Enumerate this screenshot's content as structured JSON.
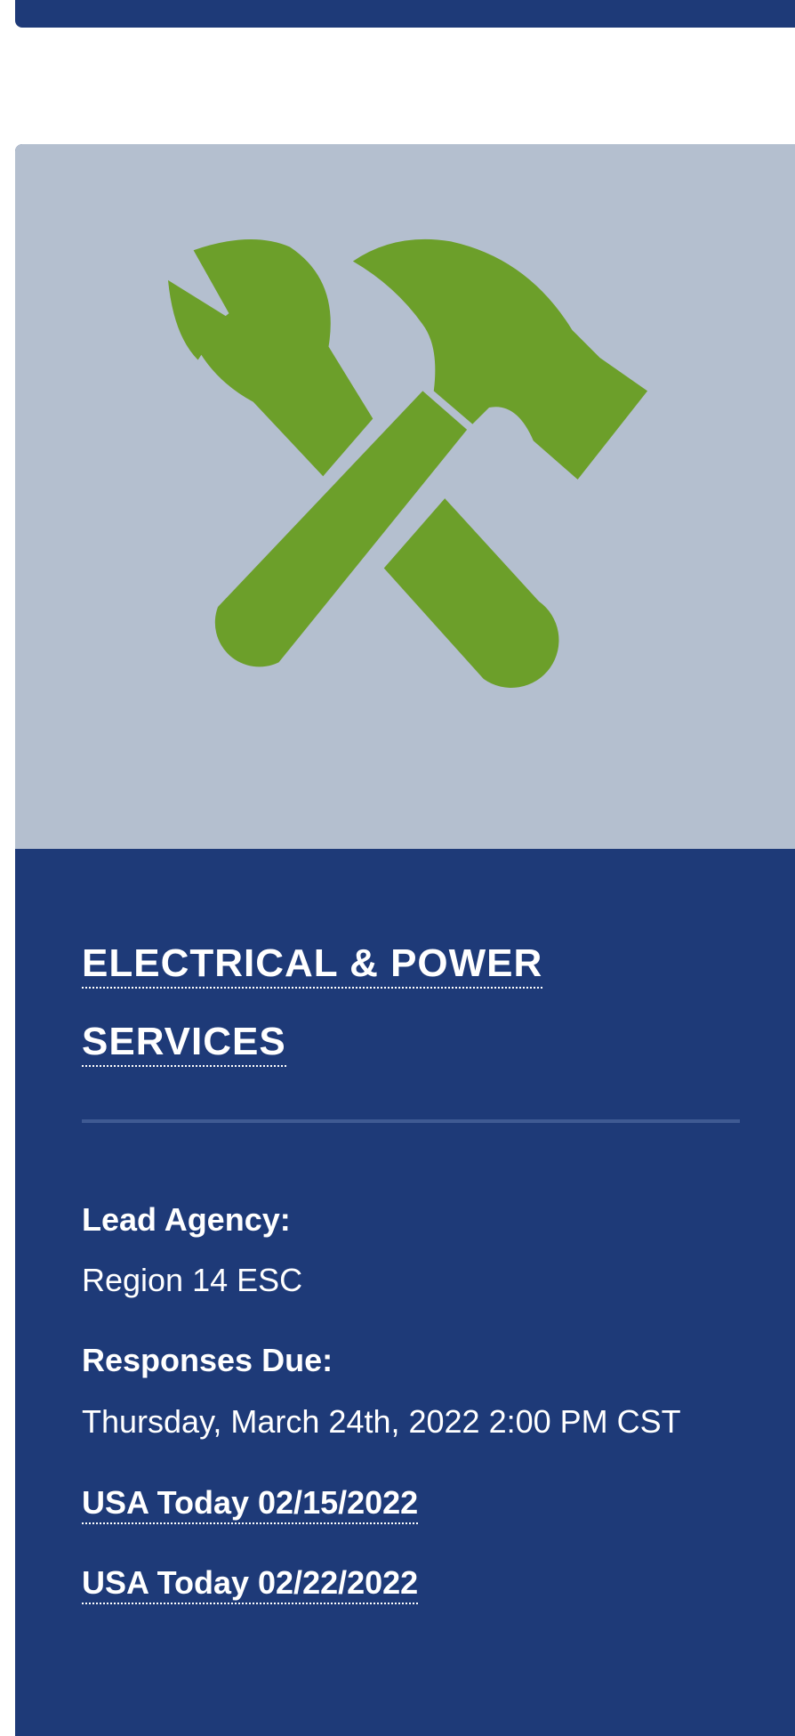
{
  "card": {
    "title": "ELECTRICAL & POWER SERVICES",
    "lead_agency_label": "Lead Agency:",
    "lead_agency": "Region 14 ESC",
    "responses_due_label": "Responses Due:",
    "responses_due": "Thursday, March 24th, 2022 2:00 PM CST",
    "links": [
      "USA Today 02/15/2022",
      "USA Today 02/22/2022"
    ]
  }
}
